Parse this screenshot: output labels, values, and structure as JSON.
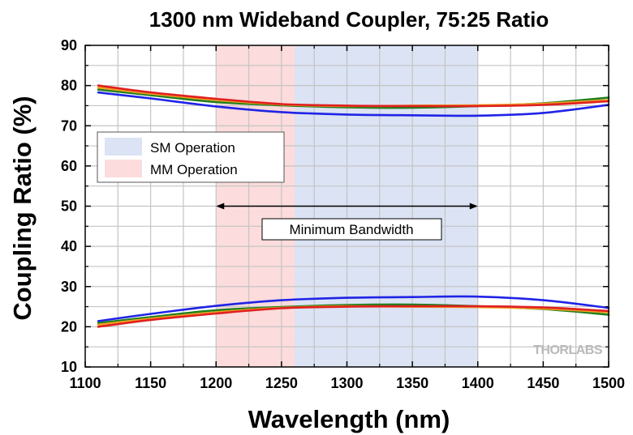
{
  "chart_data": {
    "type": "line",
    "title": "1300 nm Wideband Coupler, 75:25 Ratio",
    "xlabel": "Wavelength (nm)",
    "ylabel": "Coupling Ratio (%)",
    "xlim": [
      1100,
      1500
    ],
    "ylim": [
      10,
      90
    ],
    "x_ticks": [
      1100,
      1150,
      1200,
      1250,
      1300,
      1350,
      1400,
      1450,
      1500
    ],
    "y_ticks": [
      10,
      20,
      30,
      40,
      50,
      60,
      70,
      80,
      90
    ],
    "grid": true,
    "regions": [
      {
        "name": "MM Operation",
        "x_start": 1200,
        "x_end": 1260,
        "color": "#fcdcdc"
      },
      {
        "name": "SM Operation",
        "x_start": 1260,
        "x_end": 1400,
        "color": "#dbe3f4"
      }
    ],
    "legend": {
      "position": "middle-left",
      "entries": [
        {
          "label": "SM Operation",
          "color": "#dbe3f4"
        },
        {
          "label": "MM Operation",
          "color": "#fcdcdc"
        }
      ]
    },
    "annotation": {
      "text": "Minimum Bandwidth",
      "x_start": 1200,
      "x_end": 1400,
      "y": 50
    },
    "watermark": "THORLABS",
    "series": [
      {
        "name": "upper-blue",
        "color": "#1f23e6",
        "x": [
          1110,
          1150,
          1200,
          1250,
          1300,
          1350,
          1400,
          1450,
          1500
        ],
        "y": [
          78.3,
          76.8,
          74.8,
          73.4,
          72.8,
          72.6,
          72.5,
          73.2,
          75.2
        ]
      },
      {
        "name": "upper-green",
        "color": "#1e7f1e",
        "x": [
          1110,
          1150,
          1200,
          1250,
          1300,
          1350,
          1400,
          1450,
          1500
        ],
        "y": [
          79.0,
          77.6,
          75.9,
          75.1,
          74.6,
          74.5,
          74.9,
          75.6,
          77.0
        ]
      },
      {
        "name": "upper-orange",
        "color": "#f0a020",
        "x": [
          1110,
          1150,
          1200,
          1250,
          1300,
          1350,
          1400,
          1450,
          1500
        ],
        "y": [
          79.5,
          78.0,
          76.4,
          75.3,
          74.9,
          75.0,
          75.1,
          75.5,
          76.4
        ]
      },
      {
        "name": "upper-red",
        "color": "#e02020",
        "x": [
          1110,
          1150,
          1200,
          1250,
          1300,
          1350,
          1400,
          1450,
          1500
        ],
        "y": [
          80.0,
          78.3,
          76.7,
          75.4,
          75.0,
          74.9,
          74.9,
          75.2,
          76.1
        ]
      },
      {
        "name": "lower-blue",
        "color": "#1f23e6",
        "x": [
          1110,
          1150,
          1200,
          1250,
          1300,
          1350,
          1400,
          1450,
          1500
        ],
        "y": [
          21.4,
          23.2,
          25.2,
          26.6,
          27.2,
          27.4,
          27.5,
          26.6,
          24.7
        ]
      },
      {
        "name": "lower-green",
        "color": "#1e7f1e",
        "x": [
          1110,
          1150,
          1200,
          1250,
          1300,
          1350,
          1400,
          1450,
          1500
        ],
        "y": [
          20.9,
          22.4,
          24.1,
          24.9,
          25.4,
          25.5,
          25.1,
          24.4,
          23.0
        ]
      },
      {
        "name": "lower-orange",
        "color": "#f0a020",
        "x": [
          1110,
          1150,
          1200,
          1250,
          1300,
          1350,
          1400,
          1450,
          1500
        ],
        "y": [
          20.5,
          22.0,
          23.6,
          24.7,
          25.1,
          25.0,
          24.9,
          24.5,
          23.6
        ]
      },
      {
        "name": "lower-red",
        "color": "#e02020",
        "x": [
          1110,
          1150,
          1200,
          1250,
          1300,
          1350,
          1400,
          1450,
          1500
        ],
        "y": [
          20.0,
          21.7,
          23.3,
          24.6,
          25.0,
          25.1,
          25.1,
          24.8,
          23.9
        ]
      }
    ]
  }
}
